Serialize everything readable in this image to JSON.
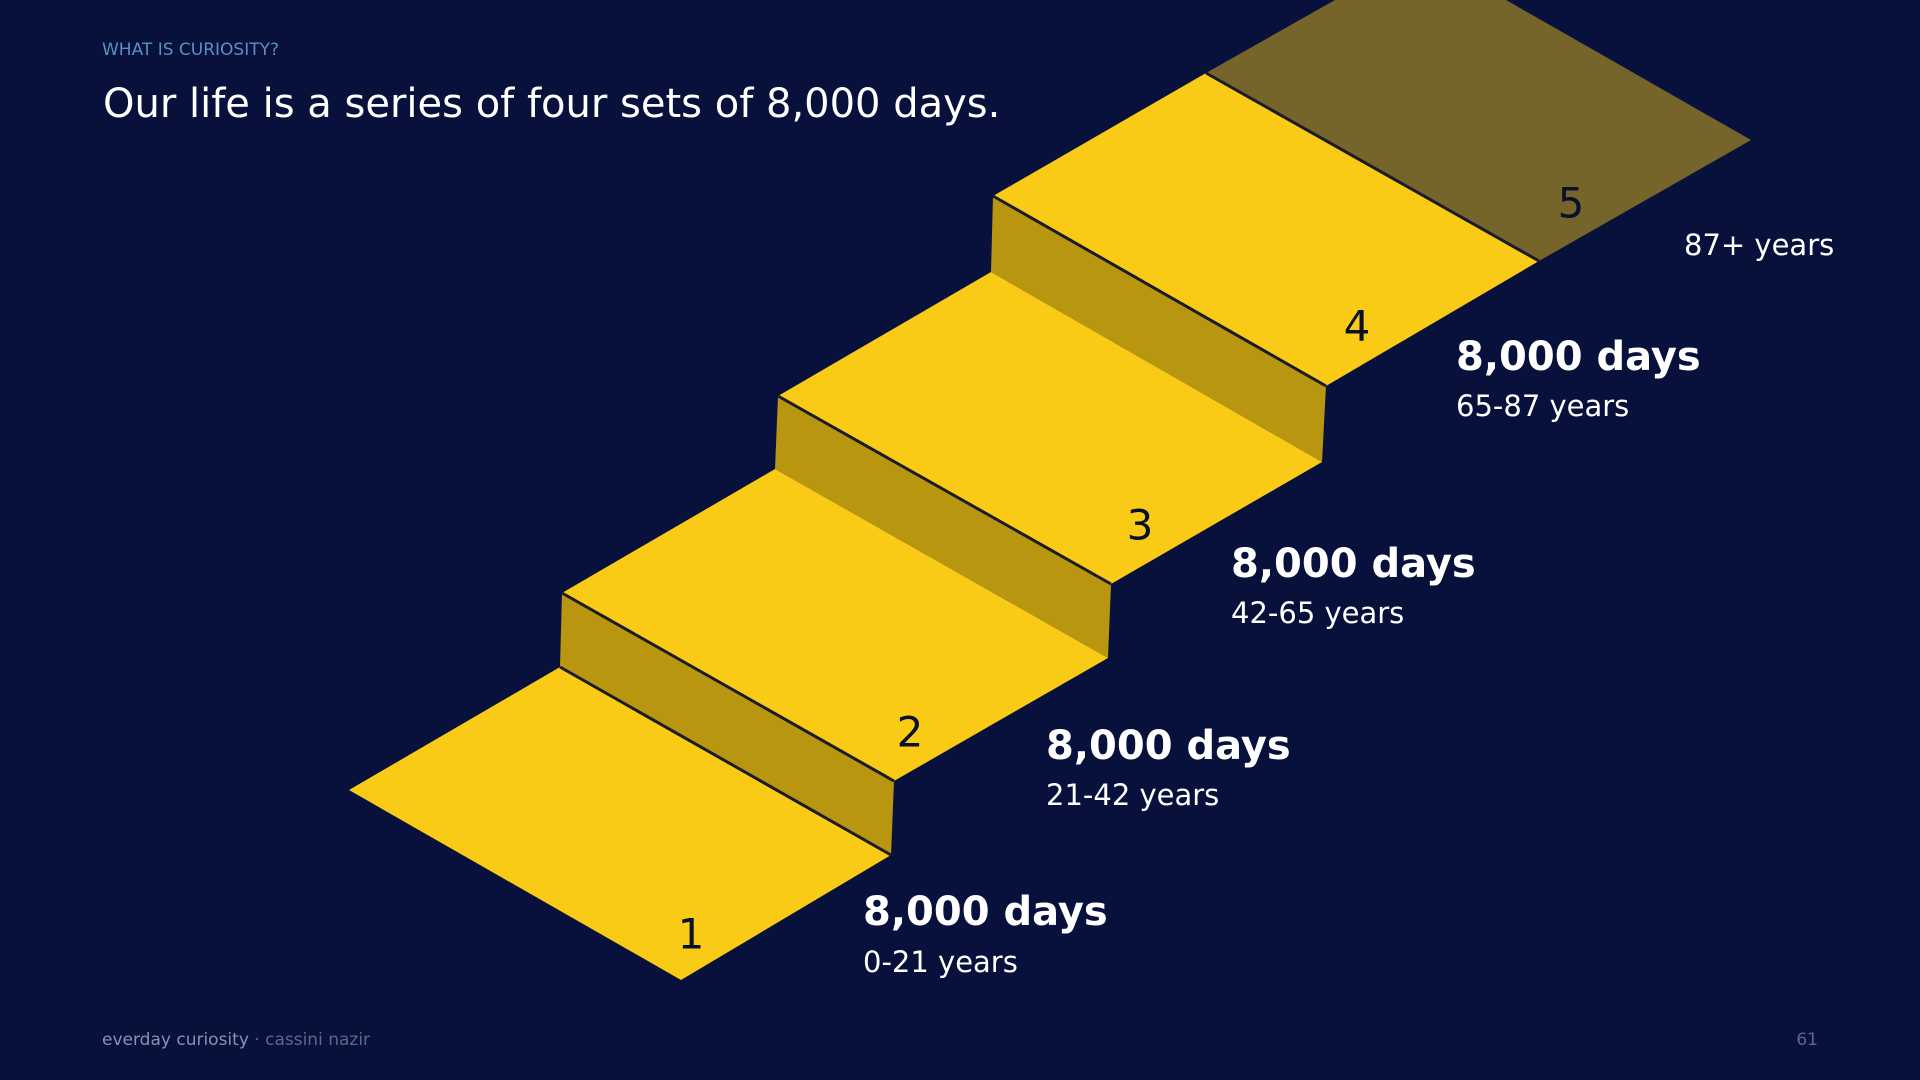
{
  "header": {
    "kicker": "WHAT IS CURIOSITY?",
    "title": "Our life is a series of four sets of 8,000 days."
  },
  "steps": [
    {
      "number": "1",
      "days": "8,000 days",
      "years": "0-21 years"
    },
    {
      "number": "2",
      "days": "8,000 days",
      "years": "21-42 years"
    },
    {
      "number": "3",
      "days": "8,000 days",
      "years": "42-65 years"
    },
    {
      "number": "4",
      "days": "8,000 days",
      "years": "65-87 years"
    },
    {
      "number": "5",
      "years": "87+ years"
    }
  ],
  "footer": {
    "brand": "everday curiosity",
    "author": "· cassini nazir",
    "page": "61"
  }
}
